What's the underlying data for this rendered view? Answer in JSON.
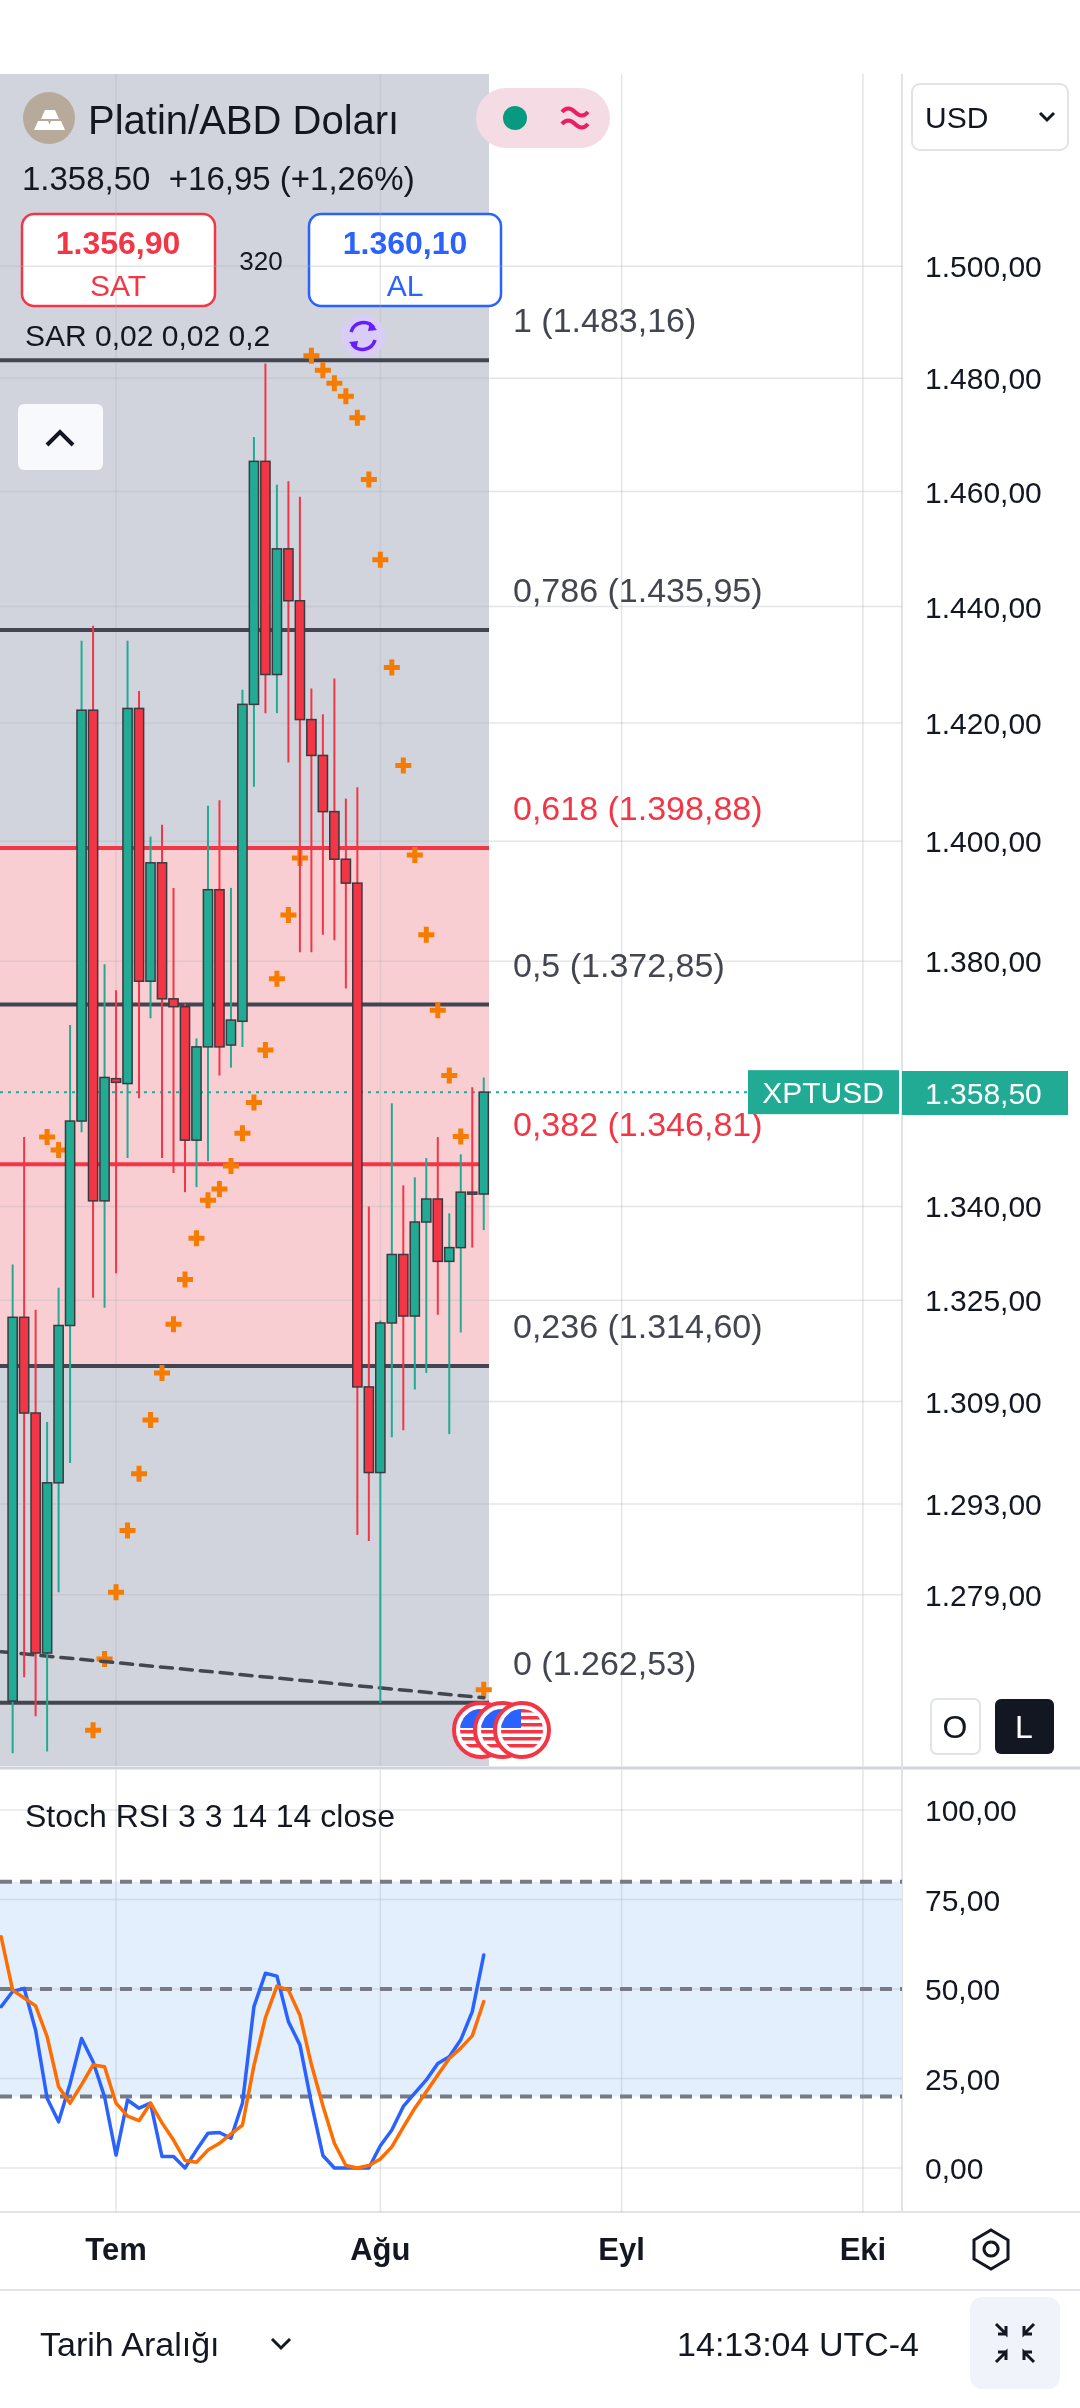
{
  "chart_data": [
    {
      "type": "candlestick",
      "title": "Platin/ABD Doları",
      "subtitle": "1.358,50  +16,95 (+1,26%)",
      "categories": [
        null,
        null,
        null,
        null,
        null,
        null,
        null,
        null,
        null,
        null,
        null,
        null,
        null,
        null,
        null,
        null,
        null,
        null,
        null,
        null,
        null,
        null,
        null,
        null,
        null,
        null,
        null,
        null,
        null,
        null,
        null,
        null,
        null,
        null,
        null,
        null,
        null,
        null,
        null,
        null,
        null,
        null,
        null,
        null,
        null,
        null,
        null,
        null,
        null,
        null,
        null,
        null,
        null,
        null,
        null,
        null,
        null,
        null,
        null,
        null,
        null,
        null,
        null,
        null,
        null,
        null,
        null,
        null,
        null,
        null,
        null,
        null,
        null,
        null,
        null,
        null,
        null,
        null,
        null
      ],
      "ohlc": [
        null,
        [
          1262.8,
          1330.7,
          1254.9,
          1322.3
        ],
        [
          1322.3,
          1351.2,
          1266.4,
          1307.2
        ],
        [
          1307.2,
          1323.5,
          1260.5,
          1270.1
        ],
        [
          1270.1,
          1305.8,
          1255.2,
          1296.3
        ],
        [
          1296.3,
          1327.0,
          1279.4,
          1321.0
        ],
        [
          1321.0,
          1369.5,
          1299.4,
          1353.8
        ],
        [
          1353.8,
          1434.1,
          1352.0,
          1422.2
        ],
        [
          1422.2,
          1436.7,
          1325.4,
          1340.9
        ],
        [
          1340.9,
          1379.5,
          1323.8,
          1360.9
        ],
        [
          1360.7,
          1375.2,
          1329.3,
          1360.1
        ],
        [
          1359.9,
          1434.1,
          1347.8,
          1422.5
        ],
        [
          1422.5,
          1425.5,
          1357.5,
          1376.7
        ],
        [
          1376.7,
          1400.8,
          1370.6,
          1396.4
        ],
        [
          1396.4,
          1402.8,
          1347.8,
          1373.8
        ],
        [
          1373.8,
          1392.2,
          1345.4,
          1372.5
        ],
        [
          1372.5,
          1373.0,
          1342.3,
          1350.7
        ],
        [
          1350.7,
          1367.3,
          1343.1,
          1365.9
        ],
        [
          1365.9,
          1406.0,
          1347.3,
          1391.9
        ],
        [
          1391.9,
          1406.9,
          1361.2,
          1365.9
        ],
        [
          1366.2,
          1392.2,
          1362.5,
          1370.3
        ],
        [
          1370.1,
          1425.7,
          1365.9,
          1423.2
        ],
        [
          1423.2,
          1469.6,
          1409.2,
          1465.3
        ],
        [
          1465.3,
          1482.6,
          1421.7,
          1428.3
        ],
        [
          1428.3,
          1461.2,
          1421.7,
          1450.0
        ],
        [
          1450.0,
          1461.8,
          1413.3,
          1441.0
        ],
        [
          1441.0,
          1459.1,
          1381.5,
          1420.6
        ],
        [
          1420.6,
          1425.9,
          1381.5,
          1414.5
        ],
        [
          1414.5,
          1421.5,
          1384.4,
          1405.0
        ],
        [
          1405.0,
          1427.6,
          1383.5,
          1397.0
        ],
        [
          1397.0,
          1407.2,
          1375.5,
          1393.0
        ],
        [
          1393.0,
          1409.1,
          1288.2,
          1311.3
        ],
        [
          1311.3,
          1340.0,
          1287.3,
          1297.9
        ],
        [
          1297.9,
          1321.8,
          1262.5,
          1321.4
        ],
        [
          1321.4,
          1356.7,
          1303.4,
          1332.3
        ],
        [
          1332.3,
          1343.4,
          1304.5,
          1322.5
        ],
        [
          1322.5,
          1344.7,
          1310.9,
          1337.5
        ],
        [
          1337.5,
          1347.8,
          1313.5,
          1341.2
        ],
        [
          1341.2,
          1351.2,
          1322.7,
          1331.2
        ],
        [
          1331.2,
          1338.9,
          1303.9,
          1333.4
        ],
        [
          1333.4,
          1348.4,
          1319.9,
          1342.3
        ],
        [
          1342.3,
          1359.3,
          1333.4,
          1342.0
        ],
        [
          1342.0,
          1360.9,
          1336.2,
          1358.5
        ],
        null,
        null,
        null,
        null,
        null,
        null,
        null,
        null,
        null,
        null,
        null,
        null,
        null,
        null,
        null,
        null,
        null,
        null,
        null,
        null,
        null,
        null,
        null,
        null,
        null,
        null,
        null,
        null,
        null,
        null,
        null,
        null,
        null,
        null,
        null,
        null
      ],
      "colors": [
        null,
        "#22ab94",
        "#f23645",
        "#f23645",
        "#22ab94",
        "#22ab94",
        "#22ab94",
        "#22ab94",
        "#f23645",
        "#22ab94",
        "#f23645",
        "#22ab94",
        "#f23645",
        "#22ab94",
        "#f23645",
        "#f23645",
        "#f23645",
        "#22ab94",
        "#22ab94",
        "#f23645",
        "#22ab94",
        "#22ab94",
        "#22ab94",
        "#f23645",
        "#22ab94",
        "#f23645",
        "#f23645",
        "#f23645",
        "#f23645",
        "#f23645",
        "#f23645",
        "#f23645",
        "#f23645",
        "#22ab94",
        "#22ab94",
        "#f23645",
        "#22ab94",
        "#22ab94",
        "#f23645",
        "#22ab94",
        "#22ab94",
        "#f23645",
        "#22ab94",
        null,
        null,
        null,
        null,
        null,
        null,
        null,
        null,
        null,
        null,
        null,
        null,
        null,
        null,
        null,
        null,
        null,
        null,
        null,
        null,
        null,
        null,
        null,
        null,
        null,
        null,
        null,
        null,
        null,
        null,
        null,
        null,
        null,
        null,
        null,
        null
      ],
      "ylim": [
        1253,
        1535
      ],
      "log": true,
      "yticks": [
        {
          "value": 1500,
          "label": "1.500,00"
        },
        {
          "value": 1480,
          "label": "1.480,00"
        },
        {
          "value": 1460,
          "label": "1.460,00"
        },
        {
          "value": 1440,
          "label": "1.440,00"
        },
        {
          "value": 1420,
          "label": "1.420,00"
        },
        {
          "value": 1400,
          "label": "1.400,00"
        },
        {
          "value": 1380,
          "label": "1.380,00"
        },
        {
          "value": 1340,
          "label": "1.340,00"
        },
        {
          "value": 1325,
          "label": "1.325,00"
        },
        {
          "value": 1309,
          "label": "1.309,00"
        },
        {
          "value": 1293,
          "label": "1.293,00"
        },
        {
          "value": 1279,
          "label": "1.279,00"
        }
      ],
      "tick_labels": "y",
      "grid": true,
      "series": [
        {
          "type": "scatter",
          "marker": "cross",
          "color": "#f57c00",
          "values": [
            null,
            null,
            null,
            null,
            1351.2,
            1349.1,
            null,
            null,
            1258.4,
            1269.2,
            1279.4,
            1288.9,
            1297.7,
            1306.1,
            1313.5,
            1321.2,
            1328.3,
            1334.9,
            1341.0,
            1342.8,
            1346.5,
            1351.8,
            1356.8,
            1365.4,
            1377.1,
            1387.7,
            1397.2,
            1484.0,
            1481.4,
            1479.1,
            1476.8,
            1473.0,
            1462.1,
            1448.1,
            1429.5,
            1412.8,
            1397.7,
            1384.4,
            1371.9,
            1361.2,
            1351.3,
            null,
            1264.5,
            null,
            null,
            null,
            null,
            null,
            null,
            null,
            null,
            null,
            null,
            null,
            null,
            null,
            null,
            null,
            null,
            null,
            null,
            null,
            null,
            null,
            null,
            null,
            null,
            null,
            null,
            null,
            null,
            null,
            null,
            null,
            null,
            null,
            null,
            null,
            null
          ]
        },
        {
          "type": "line",
          "line_style": "dashed",
          "color": "#434651",
          "values": [
            1270.3,
            null,
            null,
            null,
            null,
            null,
            null,
            null,
            null,
            null,
            null,
            null,
            null,
            null,
            null,
            null,
            null,
            null,
            null,
            null,
            null,
            null,
            null,
            null,
            null,
            null,
            null,
            null,
            null,
            null,
            null,
            null,
            null,
            null,
            null,
            null,
            null,
            null,
            null,
            null,
            null,
            null,
            1263.3,
            null,
            null,
            null,
            null,
            null,
            null,
            null,
            null,
            null,
            null,
            null,
            null,
            null,
            null,
            null,
            null,
            null,
            null,
            null,
            null,
            null,
            null,
            null,
            null,
            null,
            null,
            null,
            null,
            null,
            null,
            null,
            null,
            null,
            null,
            null,
            null
          ]
        }
      ],
      "ref_lines": [
        {
          "axis": "y",
          "value": 1483.16,
          "label": "1 (1.483,16)",
          "color": "#434651"
        },
        {
          "axis": "y",
          "value": 1435.95,
          "label": "0,786 (1.435,95)",
          "color": "#434651"
        },
        {
          "axis": "y",
          "value": 1398.88,
          "label": "0,618 (1.398,88)",
          "color": "#f23645"
        },
        {
          "axis": "y",
          "value": 1372.85,
          "label": "0,5 (1.372,85)",
          "color": "#434651"
        },
        {
          "axis": "y",
          "value": 1346.81,
          "label": "0,382 (1.346,81)",
          "color": "#f23645"
        },
        {
          "axis": "y",
          "value": 1314.6,
          "label": "0,236 (1.314,60)",
          "color": "#434651"
        },
        {
          "axis": "y",
          "value": 1262.53,
          "label": "0 (1.262,53)",
          "color": "#434651"
        },
        {
          "axis": "y",
          "value": 1358.5,
          "label": "XPTUSD",
          "color": "#22ab94",
          "line_style": "dotted"
        }
      ],
      "bands": [
        {
          "axis": "y",
          "from": 1314.6,
          "to": 1398.88,
          "color": "#f9ced3"
        }
      ],
      "annotations": [
        "1.356,90",
        "SAT",
        "320",
        "1.360,10",
        "AL",
        "SAR 0,02 0,02 0,2",
        "USD",
        "1.358,50",
        "O",
        "L",
        "Tarih Aralığı",
        "14:13:04 UTC-4"
      ]
    },
    {
      "type": "line",
      "title": "Stoch RSI 3 3 14 14 close",
      "categories": [
        null,
        null,
        null,
        null,
        null,
        null,
        null,
        null,
        null,
        null,
        "Tem",
        null,
        null,
        null,
        null,
        null,
        null,
        null,
        null,
        null,
        null,
        null,
        null,
        null,
        null,
        null,
        null,
        null,
        null,
        null,
        null,
        null,
        null,
        "Ağu",
        null,
        null,
        null,
        null,
        null,
        null,
        null,
        null,
        null,
        null,
        null,
        null,
        null,
        null,
        null,
        null,
        null,
        null,
        null,
        null,
        "Eyl",
        null,
        null,
        null,
        null,
        null,
        null,
        null,
        null,
        null,
        null,
        null,
        null,
        null,
        null,
        null,
        null,
        null,
        null,
        null,
        null,
        "Eki",
        null,
        null,
        null
      ],
      "ylim": [
        -12.3,
        111.2
      ],
      "yticks": [
        {
          "value": 0,
          "label": "0,00"
        },
        {
          "value": 25,
          "label": "25,00"
        },
        {
          "value": 50,
          "label": "50,00"
        },
        {
          "value": 75,
          "label": "75,00"
        },
        {
          "value": 100,
          "label": "100,00"
        }
      ],
      "grid": true,
      "series": [
        {
          "color": "#2962ff",
          "values": [
            45.1,
            49.3,
            50.2,
            38.5,
            19.5,
            12.9,
            23.6,
            36.2,
            29.7,
            19.9,
            3.6,
            19.0,
            16.7,
            18.1,
            3.2,
            3.2,
            0,
            5.0,
            9.7,
            9.9,
            8.3,
            18.1,
            45.1,
            54.4,
            53.6,
            40.9,
            34.4,
            18.1,
            3.5,
            0,
            0,
            0,
            0,
            6.2,
            10.6,
            17.2,
            20.9,
            24.6,
            29.2,
            31.1,
            35.8,
            43.7,
            59.5,
            null,
            null,
            null,
            null,
            null,
            null,
            null,
            null,
            null,
            null,
            null,
            null,
            null,
            null,
            null,
            null,
            null,
            null,
            null,
            null,
            null,
            null,
            null,
            null,
            null,
            null,
            null,
            null,
            null,
            null,
            null,
            null,
            null,
            null,
            null,
            null
          ]
        },
        {
          "color": "#ff6d00",
          "values": [
            64.6,
            49.7,
            47.5,
            45.3,
            36.7,
            22.7,
            18.1,
            23.3,
            28.8,
            28.3,
            18.1,
            14.5,
            13.2,
            18.1,
            12.6,
            7.8,
            2.1,
            1.6,
            5.0,
            6.9,
            9.5,
            12.0,
            28.6,
            42.0,
            50.8,
            49.7,
            42.7,
            28.9,
            17.4,
            6.9,
            0.7,
            0,
            0.7,
            2.5,
            5.9,
            11.4,
            16.7,
            21.3,
            26.0,
            30.6,
            33.5,
            36.9,
            46.5,
            null,
            null,
            null,
            null,
            null,
            null,
            null,
            null,
            null,
            null,
            null,
            null,
            null,
            null,
            null,
            null,
            null,
            null,
            null,
            null,
            null,
            null,
            null,
            null,
            null,
            null,
            null,
            null,
            null,
            null,
            null,
            null,
            null,
            null,
            null,
            null
          ]
        }
      ],
      "ref_lines": [
        {
          "axis": "y",
          "value": 80,
          "color": "#787b86",
          "line_style": "dashed"
        },
        {
          "axis": "y",
          "value": 50,
          "color": "#787b86",
          "line_style": "dashed"
        },
        {
          "axis": "y",
          "value": 20,
          "color": "#787b86",
          "line_style": "dashed"
        }
      ],
      "bands": [
        {
          "axis": "y",
          "from": 20,
          "to": 80,
          "color": "#e3effd"
        }
      ]
    }
  ]
}
